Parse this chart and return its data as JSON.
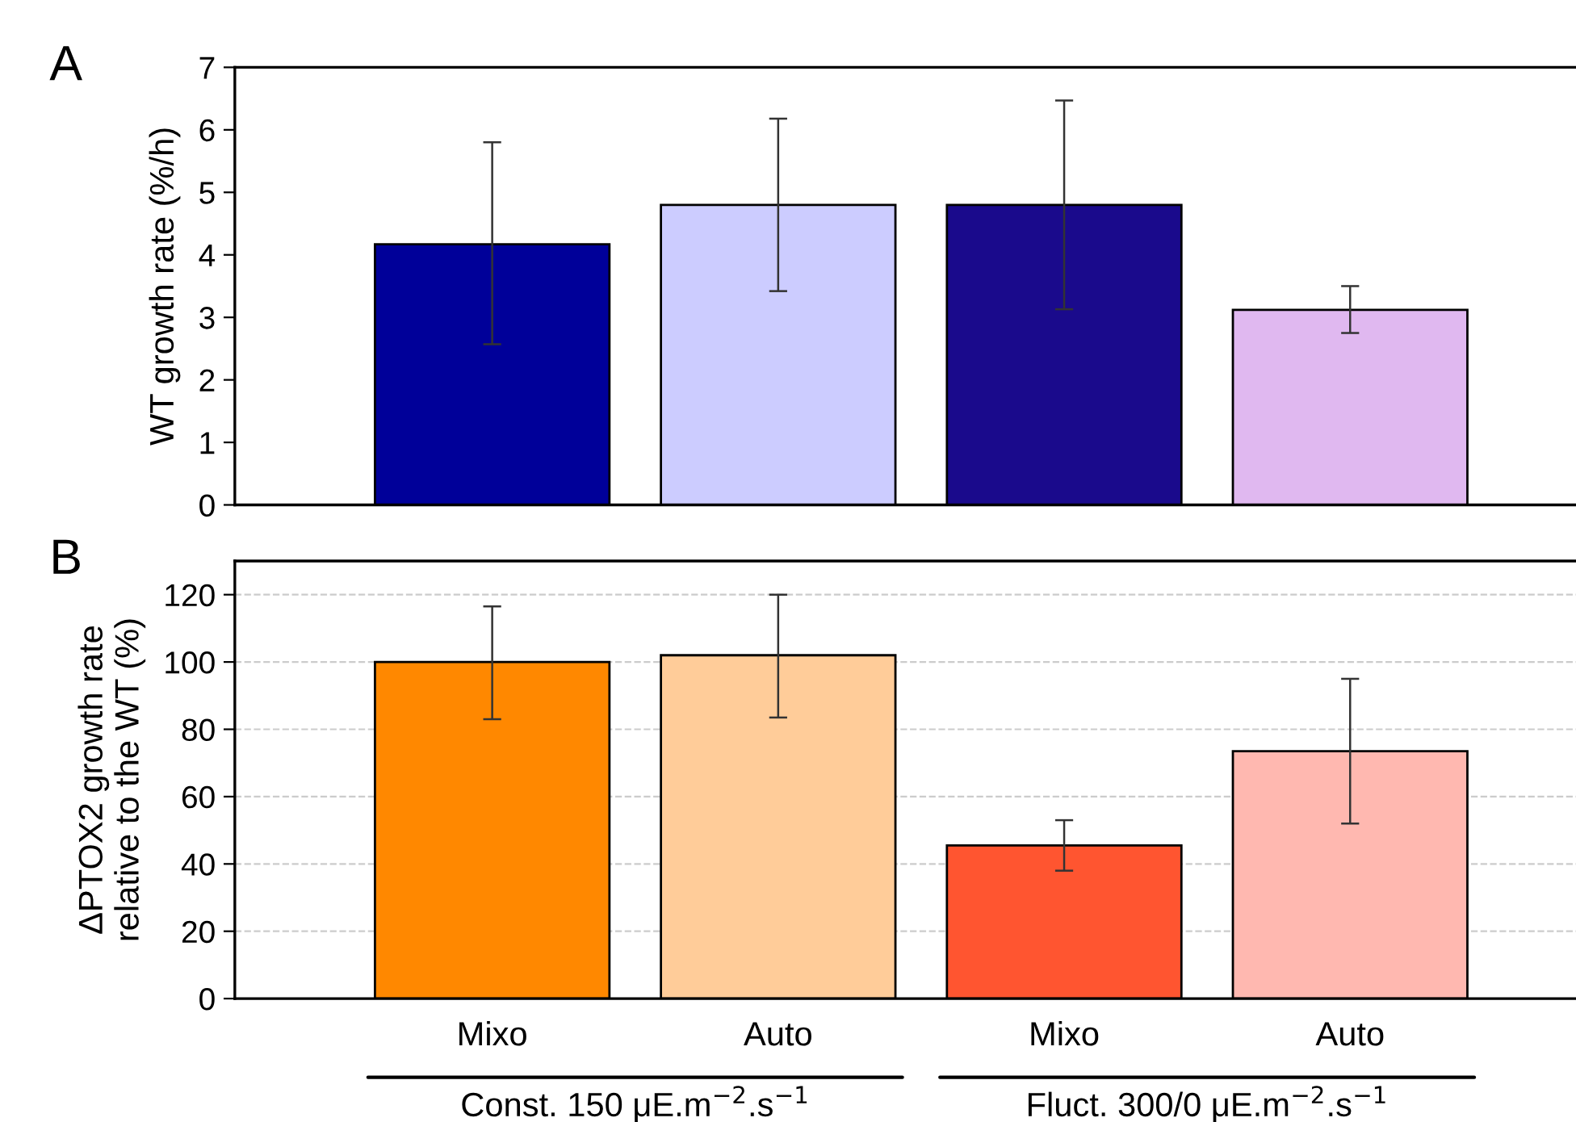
{
  "chart_data": [
    {
      "type": "bar",
      "title": "A",
      "ylabel": "WT growth rate (%/h)",
      "categories": [
        null,
        null,
        null,
        null
      ],
      "tick_labels": "y",
      "values": [
        4.17,
        4.8,
        4.8,
        3.12
      ],
      "errors": [
        [
          2.57,
          5.8
        ],
        [
          3.42,
          6.18
        ],
        [
          3.13,
          6.47
        ],
        [
          2.75,
          3.5
        ]
      ],
      "colors": [
        "#000099",
        "#ccccff",
        "#1a0a8c",
        "#e0b8f0"
      ],
      "ylim": [
        0,
        7
      ],
      "yticks": [
        0,
        1,
        2,
        3,
        4,
        5,
        6,
        7
      ],
      "grid": false
    },
    {
      "type": "bar",
      "title": "B",
      "ylabel": "ΔPTOX2 growth rate\nrelative to the WT (%)",
      "categories": [
        "Mixo",
        "Auto",
        "Mixo",
        "Auto"
      ],
      "values": [
        100,
        102,
        45.5,
        73.5
      ],
      "errors": [
        [
          83,
          116.5
        ],
        [
          83.5,
          120
        ],
        [
          38,
          53
        ],
        [
          52,
          95
        ]
      ],
      "colors": [
        "#ff8800",
        "#ffcc99",
        "#ff5530",
        "#ffb8b0"
      ],
      "ylim": [
        0,
        130
      ],
      "yticks": [
        0,
        20,
        40,
        60,
        80,
        100,
        120
      ],
      "grid": "y",
      "annotations": [
        "Const. 150 μE.m$^{−2}$.s$^{−1}$",
        "Fluct. 300/0 μE.m$^{−2}$.s$^{−1}$"
      ]
    }
  ]
}
